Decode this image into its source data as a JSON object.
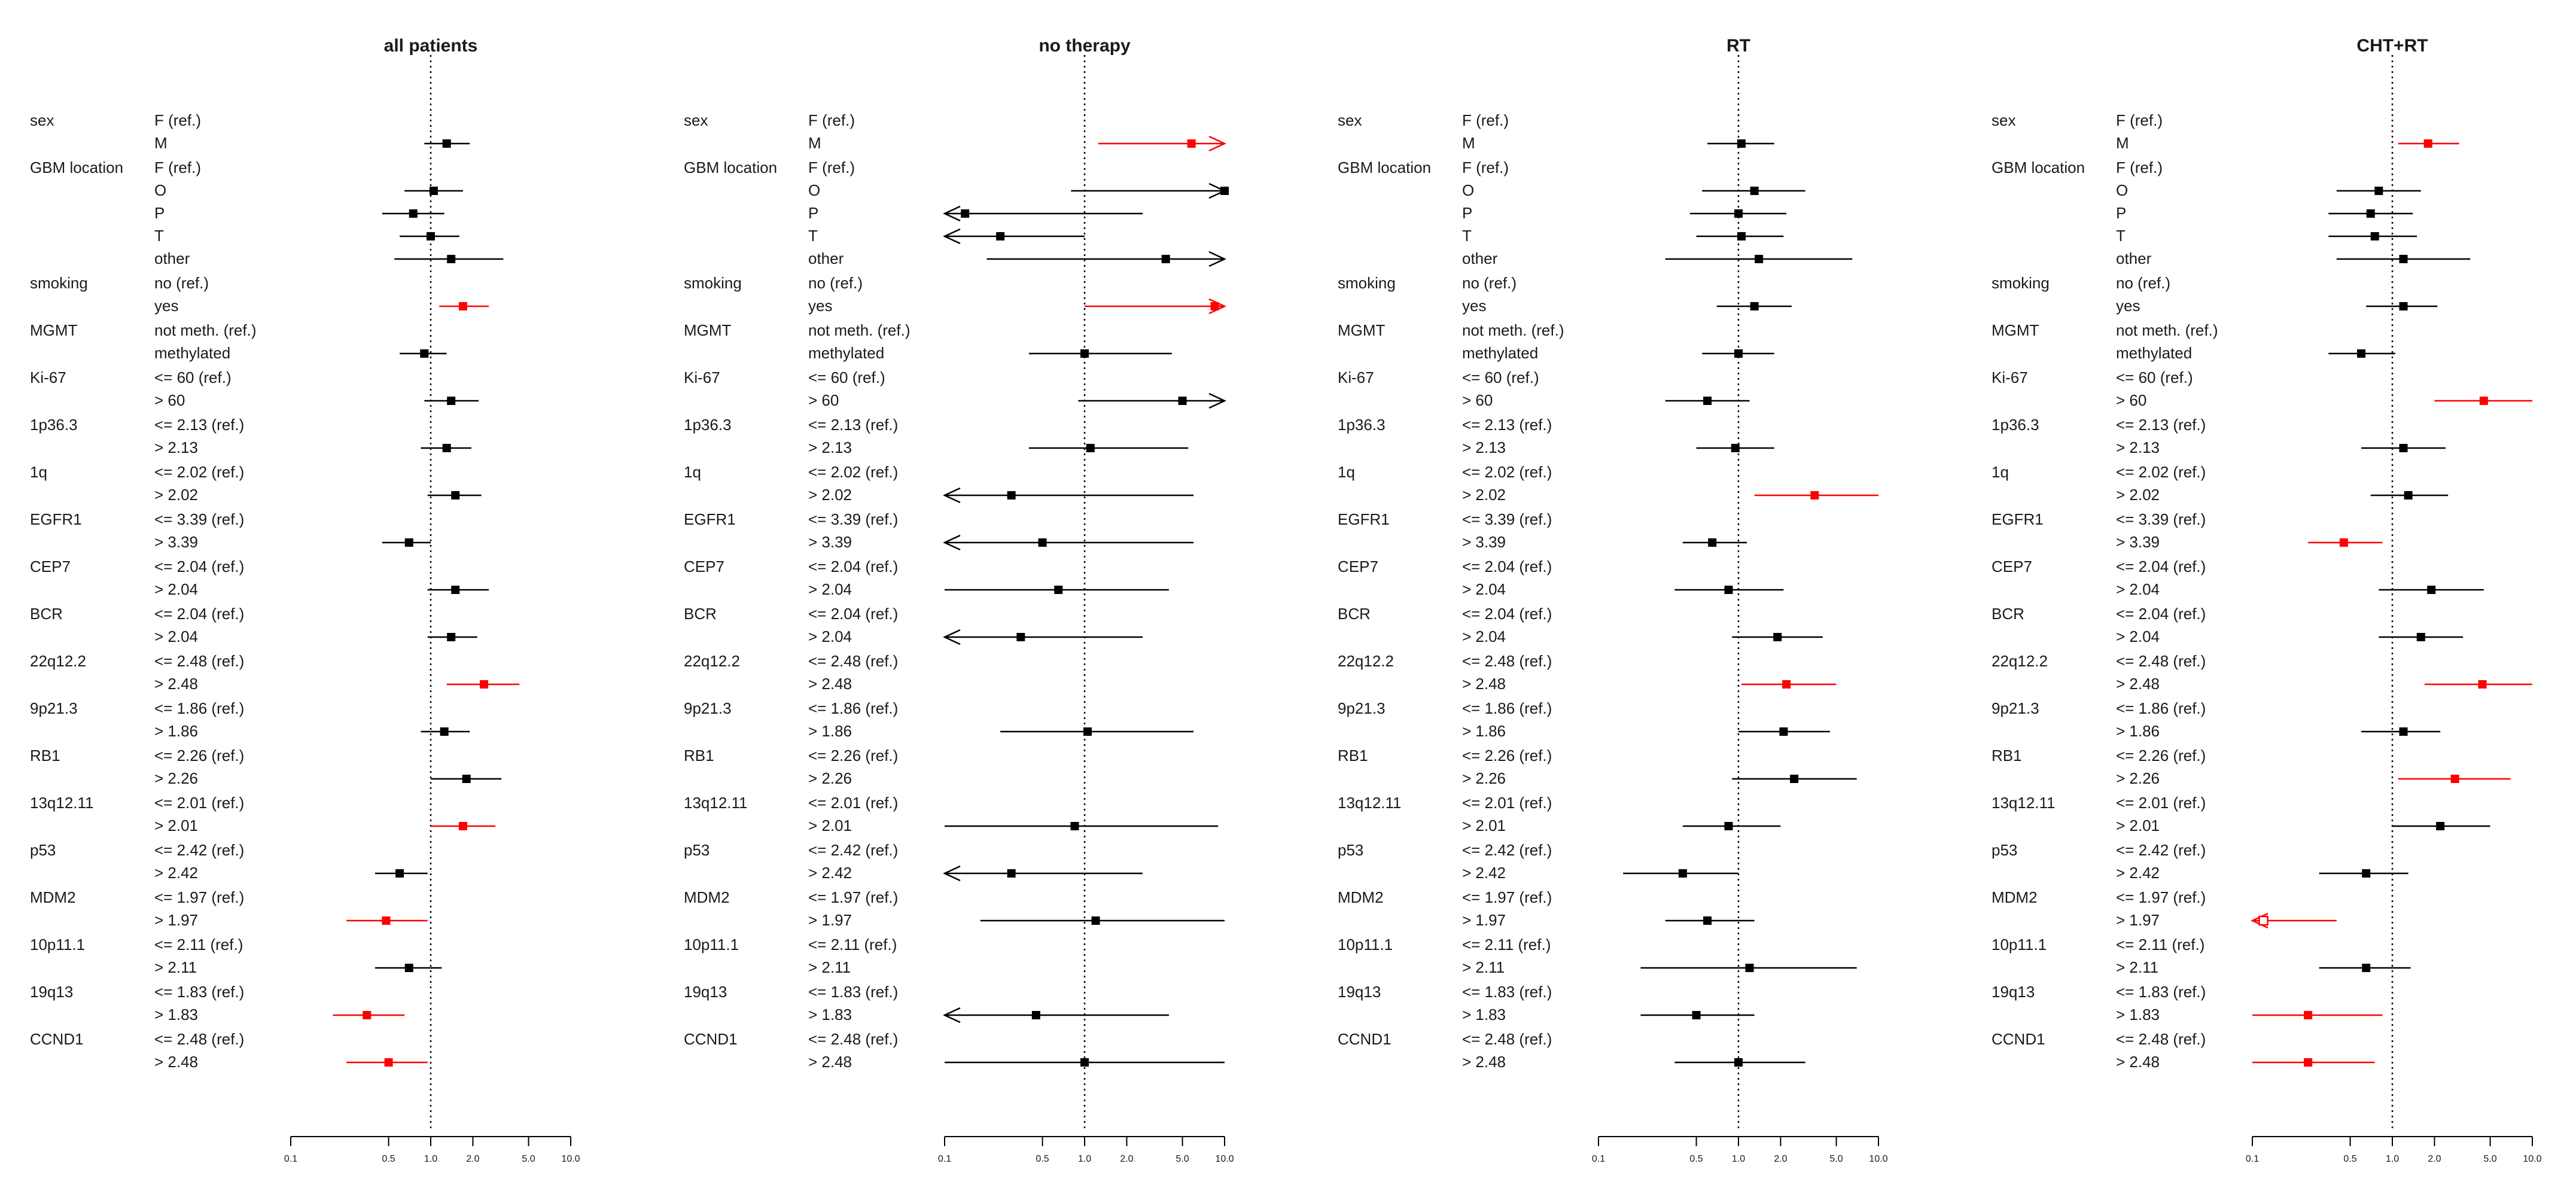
{
  "chart_data": {
    "type": "forest",
    "panels": [
      "all patients",
      "no therapy",
      "RT",
      "CHT+RT"
    ],
    "x_axis": {
      "scale": "log",
      "ticks": [
        0.1,
        0.5,
        1.0,
        2.0,
        5.0,
        10.0
      ],
      "tick_labels": [
        "0.1",
        "0.5",
        "1.0",
        "2.0",
        "5.0",
        "10.0"
      ],
      "xlim": [
        0.1,
        10.0
      ],
      "reference_line": 1.0
    },
    "colors": {
      "significant": "#ff0000",
      "not_significant": "#000000",
      "reference_line": "#000000"
    },
    "rows": [
      {
        "variable": "sex",
        "levels": [
          "F (ref.)",
          "M"
        ]
      },
      {
        "variable": "GBM location",
        "levels": [
          "F (ref.)",
          "O",
          "P",
          "T",
          "other"
        ]
      },
      {
        "variable": "smoking",
        "levels": [
          "no (ref.)",
          "yes"
        ]
      },
      {
        "variable": "MGMT",
        "levels": [
          "not meth. (ref.)",
          "methylated"
        ]
      },
      {
        "variable": "Ki-67",
        "levels": [
          "<= 60 (ref.)",
          "> 60"
        ]
      },
      {
        "variable": "1p36.3",
        "levels": [
          "<= 2.13 (ref.)",
          "> 2.13"
        ]
      },
      {
        "variable": "1q",
        "levels": [
          "<= 2.02 (ref.)",
          "> 2.02"
        ]
      },
      {
        "variable": "EGFR1",
        "levels": [
          "<= 3.39 (ref.)",
          "> 3.39"
        ]
      },
      {
        "variable": "CEP7",
        "levels": [
          "<= 2.04 (ref.)",
          "> 2.04"
        ]
      },
      {
        "variable": "BCR",
        "levels": [
          "<= 2.04 (ref.)",
          "> 2.04"
        ]
      },
      {
        "variable": "22q12.2",
        "levels": [
          "<= 2.48 (ref.)",
          "> 2.48"
        ]
      },
      {
        "variable": "9p21.3",
        "levels": [
          "<= 1.86 (ref.)",
          "> 1.86"
        ]
      },
      {
        "variable": "RB1",
        "levels": [
          "<= 2.26 (ref.)",
          "> 2.26"
        ]
      },
      {
        "variable": "13q12.11",
        "levels": [
          "<= 2.01 (ref.)",
          "> 2.01"
        ]
      },
      {
        "variable": "p53",
        "levels": [
          "<= 2.42 (ref.)",
          "> 2.42"
        ]
      },
      {
        "variable": "MDM2",
        "levels": [
          "<= 1.97 (ref.)",
          "> 1.97"
        ]
      },
      {
        "variable": "10p11.1",
        "levels": [
          "<= 2.11 (ref.)",
          "> 2.11"
        ]
      },
      {
        "variable": "19q13",
        "levels": [
          "<= 1.83 (ref.)",
          "> 1.83"
        ]
      },
      {
        "variable": "CCND1",
        "levels": [
          "<= 2.48 (ref.)",
          "> 2.48"
        ]
      }
    ],
    "estimates": {
      "all patients": [
        {
          "row": "M",
          "hr": 1.3,
          "lo": 0.9,
          "hi": 1.9,
          "sig": false
        },
        {
          "row": "O",
          "hr": 1.05,
          "lo": 0.65,
          "hi": 1.7,
          "sig": false
        },
        {
          "row": "P",
          "hr": 0.75,
          "lo": 0.45,
          "hi": 1.25,
          "sig": false
        },
        {
          "row": "T",
          "hr": 1.0,
          "lo": 0.6,
          "hi": 1.6,
          "sig": false
        },
        {
          "row": "other",
          "hr": 1.4,
          "lo": 0.55,
          "hi": 3.3,
          "sig": false
        },
        {
          "row": "yes",
          "hr": 1.7,
          "lo": 1.15,
          "hi": 2.6,
          "sig": true
        },
        {
          "row": "methylated",
          "hr": 0.9,
          "lo": 0.6,
          "hi": 1.3,
          "sig": false
        },
        {
          "row": "> 60",
          "hr": 1.4,
          "lo": 0.9,
          "hi": 2.2,
          "sig": false
        },
        {
          "row": "> 2.13",
          "hr": 1.3,
          "lo": 0.85,
          "hi": 1.95,
          "sig": false
        },
        {
          "row": "> 2.02",
          "hr": 1.5,
          "lo": 0.95,
          "hi": 2.3,
          "sig": false
        },
        {
          "row": "> 3.39",
          "hr": 0.7,
          "lo": 0.45,
          "hi": 1.0,
          "sig": false
        },
        {
          "row": "> 2.04",
          "hr": 1.5,
          "lo": 0.95,
          "hi": 2.6,
          "sig": false
        },
        {
          "row": "> 2.04",
          "hr": 1.4,
          "lo": 0.95,
          "hi": 2.15,
          "sig": false
        },
        {
          "row": "> 2.48",
          "hr": 2.4,
          "lo": 1.3,
          "hi": 4.3,
          "sig": true
        },
        {
          "row": "> 1.86",
          "hr": 1.25,
          "lo": 0.85,
          "hi": 1.9,
          "sig": false
        },
        {
          "row": "> 2.26",
          "hr": 1.8,
          "lo": 1.0,
          "hi": 3.2,
          "sig": false
        },
        {
          "row": "> 2.01",
          "hr": 1.7,
          "lo": 1.0,
          "hi": 2.9,
          "sig": true
        },
        {
          "row": "> 2.42",
          "hr": 0.6,
          "lo": 0.4,
          "hi": 0.95,
          "sig": false
        },
        {
          "row": "> 1.97",
          "hr": 0.48,
          "lo": 0.25,
          "hi": 0.95,
          "sig": true
        },
        {
          "row": "> 2.11",
          "hr": 0.7,
          "lo": 0.4,
          "hi": 1.2,
          "sig": false
        },
        {
          "row": "> 1.83",
          "hr": 0.35,
          "lo": 0.2,
          "hi": 0.65,
          "sig": true
        },
        {
          "row": "> 2.48",
          "hr": 0.5,
          "lo": 0.25,
          "hi": 0.95,
          "sig": true
        }
      ],
      "no therapy": [
        {
          "row": "M",
          "hr": 5.8,
          "lo": 1.25,
          "hi": 10,
          "sig": true,
          "arrow_hi": true
        },
        {
          "row": "O",
          "hr": 10,
          "lo": 0.8,
          "hi": 10,
          "sig": false,
          "arrow_hi": true
        },
        {
          "row": "P",
          "hr": 0.14,
          "lo": 0.1,
          "hi": 2.6,
          "sig": false,
          "arrow_lo": true
        },
        {
          "row": "T",
          "hr": 0.25,
          "lo": 0.1,
          "hi": 1.0,
          "sig": false,
          "arrow_lo": true
        },
        {
          "row": "other",
          "hr": 3.8,
          "lo": 0.2,
          "hi": 10,
          "sig": false,
          "arrow_hi": true
        },
        {
          "row": "yes",
          "hr": 8.5,
          "lo": 1.0,
          "hi": 10,
          "sig": true,
          "arrow_hi": true
        },
        {
          "row": "methylated",
          "hr": 1.0,
          "lo": 0.4,
          "hi": 4.2,
          "sig": false
        },
        {
          "row": "> 60",
          "hr": 5.0,
          "lo": 0.9,
          "hi": 10,
          "sig": false,
          "arrow_hi": true
        },
        {
          "row": "> 2.13",
          "hr": 1.1,
          "lo": 0.4,
          "hi": 5.5,
          "sig": false
        },
        {
          "row": "> 2.02",
          "hr": 0.3,
          "lo": 0.1,
          "hi": 6.0,
          "sig": false,
          "arrow_lo": true
        },
        {
          "row": "> 3.39",
          "hr": 0.5,
          "lo": 0.1,
          "hi": 6.0,
          "sig": false,
          "arrow_lo": true
        },
        {
          "row": "> 2.04",
          "hr": 0.65,
          "lo": 0.1,
          "hi": 4.0,
          "sig": false
        },
        {
          "row": "> 2.04",
          "hr": 0.35,
          "lo": 0.1,
          "hi": 2.6,
          "sig": false,
          "arrow_lo": true
        },
        {
          "row": "> 2.48",
          "hr": 0,
          "lo": 0,
          "hi": 0,
          "sig": false,
          "absent": true
        },
        {
          "row": "> 1.86",
          "hr": 1.05,
          "lo": 0.25,
          "hi": 6.0,
          "sig": false
        },
        {
          "row": "> 2.26",
          "hr": 0,
          "lo": 0,
          "hi": 0,
          "sig": false,
          "absent": true
        },
        {
          "row": "> 2.01",
          "hr": 0.85,
          "lo": 0.1,
          "hi": 9.0,
          "sig": false
        },
        {
          "row": "> 2.42",
          "hr": 0.3,
          "lo": 0.1,
          "hi": 2.6,
          "sig": false,
          "arrow_lo": true
        },
        {
          "row": "> 1.97",
          "hr": 1.2,
          "lo": 0.18,
          "hi": 10.0,
          "sig": false
        },
        {
          "row": "> 2.11",
          "hr": 0,
          "lo": 0,
          "hi": 0,
          "sig": false,
          "absent": true
        },
        {
          "row": "> 1.83",
          "hr": 0.45,
          "lo": 0.1,
          "hi": 4.0,
          "sig": false,
          "arrow_lo": true
        },
        {
          "row": "> 2.48",
          "hr": 1.0,
          "lo": 0.1,
          "hi": 10.0,
          "sig": false
        }
      ],
      "RT": [
        {
          "row": "M",
          "hr": 1.05,
          "lo": 0.6,
          "hi": 1.8,
          "sig": false
        },
        {
          "row": "O",
          "hr": 1.3,
          "lo": 0.55,
          "hi": 3.0,
          "sig": false
        },
        {
          "row": "P",
          "hr": 1.0,
          "lo": 0.45,
          "hi": 2.2,
          "sig": false
        },
        {
          "row": "T",
          "hr": 1.05,
          "lo": 0.5,
          "hi": 2.1,
          "sig": false
        },
        {
          "row": "other",
          "hr": 1.4,
          "lo": 0.3,
          "hi": 6.5,
          "sig": false
        },
        {
          "row": "yes",
          "hr": 1.3,
          "lo": 0.7,
          "hi": 2.4,
          "sig": false
        },
        {
          "row": "methylated",
          "hr": 1.0,
          "lo": 0.55,
          "hi": 1.8,
          "sig": false
        },
        {
          "row": "> 60",
          "hr": 0.6,
          "lo": 0.3,
          "hi": 1.2,
          "sig": false
        },
        {
          "row": "> 2.13",
          "hr": 0.95,
          "lo": 0.5,
          "hi": 1.8,
          "sig": false
        },
        {
          "row": "> 2.02",
          "hr": 3.5,
          "lo": 1.3,
          "hi": 10.0,
          "sig": true
        },
        {
          "row": "> 3.39",
          "hr": 0.65,
          "lo": 0.4,
          "hi": 1.15,
          "sig": false
        },
        {
          "row": "> 2.04",
          "hr": 0.85,
          "lo": 0.35,
          "hi": 2.1,
          "sig": false
        },
        {
          "row": "> 2.04",
          "hr": 1.9,
          "lo": 0.9,
          "hi": 4.0,
          "sig": false
        },
        {
          "row": "> 2.48",
          "hr": 2.2,
          "lo": 1.05,
          "hi": 5.0,
          "sig": true
        },
        {
          "row": "> 1.86",
          "hr": 2.1,
          "lo": 1.0,
          "hi": 4.5,
          "sig": false
        },
        {
          "row": "> 2.26",
          "hr": 2.5,
          "lo": 0.9,
          "hi": 7.0,
          "sig": false
        },
        {
          "row": "> 2.01",
          "hr": 0.85,
          "lo": 0.4,
          "hi": 2.0,
          "sig": false
        },
        {
          "row": "> 2.42",
          "hr": 0.4,
          "lo": 0.15,
          "hi": 1.0,
          "sig": false
        },
        {
          "row": "> 1.97",
          "hr": 0.6,
          "lo": 0.3,
          "hi": 1.3,
          "sig": false
        },
        {
          "row": "> 2.11",
          "hr": 1.2,
          "lo": 0.2,
          "hi": 7.0,
          "sig": false
        },
        {
          "row": "> 1.83",
          "hr": 0.5,
          "lo": 0.2,
          "hi": 1.3,
          "sig": false
        },
        {
          "row": "> 2.48",
          "hr": 1.0,
          "lo": 0.35,
          "hi": 3.0,
          "sig": false
        }
      ],
      "CHT+RT": [
        {
          "row": "M",
          "hr": 1.8,
          "lo": 1.1,
          "hi": 3.0,
          "sig": true
        },
        {
          "row": "O",
          "hr": 0.8,
          "lo": 0.4,
          "hi": 1.6,
          "sig": false
        },
        {
          "row": "P",
          "hr": 0.7,
          "lo": 0.35,
          "hi": 1.4,
          "sig": false
        },
        {
          "row": "T",
          "hr": 0.75,
          "lo": 0.35,
          "hi": 1.5,
          "sig": false
        },
        {
          "row": "other",
          "hr": 1.2,
          "lo": 0.4,
          "hi": 3.6,
          "sig": false
        },
        {
          "row": "yes",
          "hr": 1.2,
          "lo": 0.65,
          "hi": 2.1,
          "sig": false
        },
        {
          "row": "methylated",
          "hr": 0.6,
          "lo": 0.35,
          "hi": 1.05,
          "sig": false
        },
        {
          "row": "> 60",
          "hr": 4.5,
          "lo": 2.0,
          "hi": 10.0,
          "sig": true
        },
        {
          "row": "> 2.13",
          "hr": 1.2,
          "lo": 0.6,
          "hi": 2.4,
          "sig": false
        },
        {
          "row": "> 2.02",
          "hr": 1.3,
          "lo": 0.7,
          "hi": 2.5,
          "sig": false
        },
        {
          "row": "> 3.39",
          "hr": 0.45,
          "lo": 0.25,
          "hi": 0.85,
          "sig": true
        },
        {
          "row": "> 2.04",
          "hr": 1.9,
          "lo": 0.8,
          "hi": 4.5,
          "sig": false
        },
        {
          "row": "> 2.04",
          "hr": 1.6,
          "lo": 0.8,
          "hi": 3.2,
          "sig": false
        },
        {
          "row": "> 2.48",
          "hr": 4.4,
          "lo": 1.7,
          "hi": 11.0,
          "sig": true
        },
        {
          "row": "> 1.86",
          "hr": 1.2,
          "lo": 0.6,
          "hi": 2.2,
          "sig": false
        },
        {
          "row": "> 2.26",
          "hr": 2.8,
          "lo": 1.1,
          "hi": 7.0,
          "sig": true
        },
        {
          "row": "> 2.01",
          "hr": 2.2,
          "lo": 1.0,
          "hi": 5.0,
          "sig": false
        },
        {
          "row": "> 2.42",
          "hr": 0.65,
          "lo": 0.3,
          "hi": 1.3,
          "sig": false
        },
        {
          "row": "> 1.97",
          "hr": 0.12,
          "lo": 0.1,
          "hi": 0.4,
          "sig": true,
          "arrow_lo": true,
          "open_marker": true
        },
        {
          "row": "> 2.11",
          "hr": 0.65,
          "lo": 0.3,
          "hi": 1.35,
          "sig": false
        },
        {
          "row": "> 1.83",
          "hr": 0.25,
          "lo": 0.1,
          "hi": 0.85,
          "sig": true
        },
        {
          "row": "> 2.48",
          "hr": 0.25,
          "lo": 0.1,
          "hi": 0.75,
          "sig": true
        }
      ]
    }
  }
}
